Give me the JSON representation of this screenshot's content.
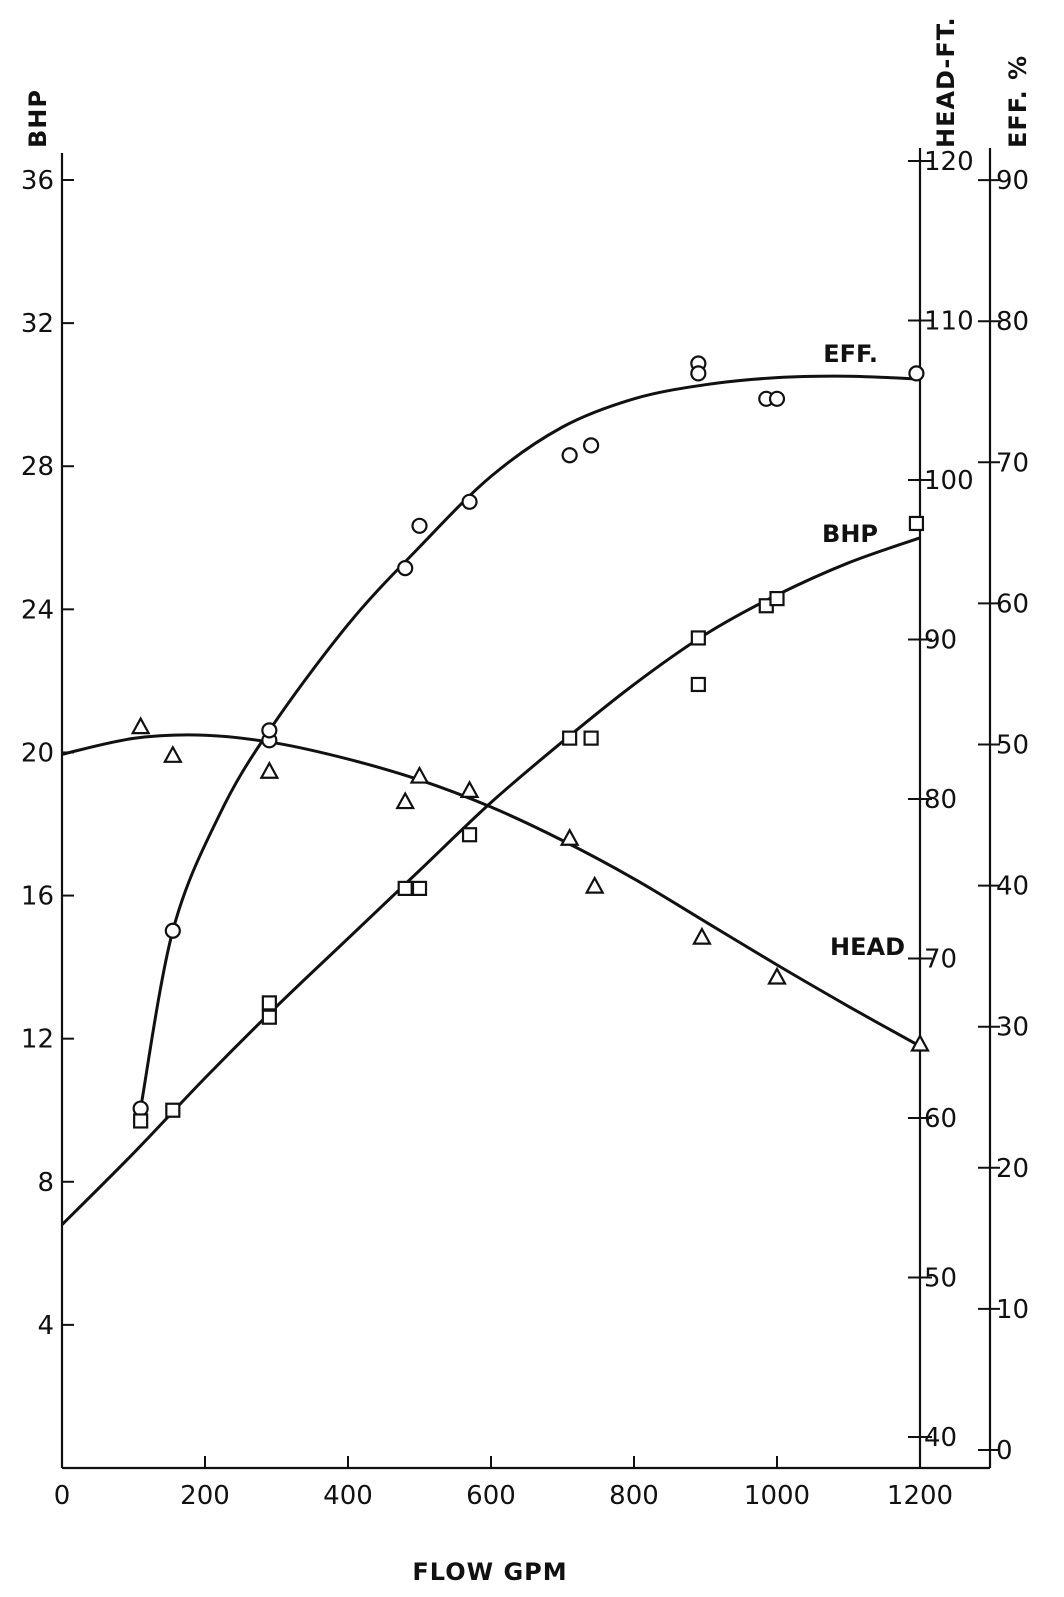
{
  "chart_data": {
    "type": "scatter",
    "title": "",
    "xlabel": "FLOW GPM",
    "x_ticks": [
      "0",
      "200",
      "400",
      "600",
      "800",
      "1000",
      "1200"
    ],
    "xlim": [
      0,
      1200
    ],
    "grid": false,
    "axes": {
      "bhp": {
        "label": "BHP",
        "ylim": [
          0,
          36
        ],
        "ticks": [
          "4",
          "8",
          "12",
          "16",
          "20",
          "24",
          "28",
          "32",
          "36"
        ],
        "side": "left"
      },
      "head": {
        "label": "HEAD-FT.",
        "ylim": [
          35,
          122
        ],
        "ticks": [
          "40",
          "50",
          "60",
          "70",
          "80",
          "90",
          "100",
          "110",
          "120"
        ],
        "side": "right-inner"
      },
      "eff": {
        "label": "EFF. %",
        "ylim": [
          0,
          90
        ],
        "ticks": [
          "0",
          "10",
          "20",
          "30",
          "40",
          "50",
          "60",
          "70",
          "80",
          "90"
        ],
        "side": "right-outer"
      }
    },
    "series": [
      {
        "name": "EFF.",
        "axis": "eff",
        "marker": "circle",
        "points": [
          {
            "x": 110,
            "y": 24.2
          },
          {
            "x": 155,
            "y": 36.8
          },
          {
            "x": 290,
            "y": 50.3
          },
          {
            "x": 290,
            "y": 51.0
          },
          {
            "x": 480,
            "y": 62.5
          },
          {
            "x": 500,
            "y": 65.5
          },
          {
            "x": 570,
            "y": 67.2
          },
          {
            "x": 710,
            "y": 70.5
          },
          {
            "x": 740,
            "y": 71.2
          },
          {
            "x": 890,
            "y": 77.0
          },
          {
            "x": 890,
            "y": 76.3
          },
          {
            "x": 985,
            "y": 74.5
          },
          {
            "x": 1000,
            "y": 74.5
          },
          {
            "x": 1195,
            "y": 76.3
          }
        ],
        "curve": [
          {
            "x": 110,
            "y": 24.2
          },
          {
            "x": 155,
            "y": 36.8
          },
          {
            "x": 220,
            "y": 45.0
          },
          {
            "x": 290,
            "y": 51.0
          },
          {
            "x": 400,
            "y": 58.5
          },
          {
            "x": 500,
            "y": 64.0
          },
          {
            "x": 600,
            "y": 69.0
          },
          {
            "x": 700,
            "y": 72.5
          },
          {
            "x": 800,
            "y": 74.5
          },
          {
            "x": 900,
            "y": 75.5
          },
          {
            "x": 1000,
            "y": 76.0
          },
          {
            "x": 1100,
            "y": 76.1
          },
          {
            "x": 1200,
            "y": 75.9
          }
        ]
      },
      {
        "name": "BHP",
        "axis": "bhp",
        "marker": "square",
        "points": [
          {
            "x": 110,
            "y": 9.7
          },
          {
            "x": 155,
            "y": 10.0
          },
          {
            "x": 290,
            "y": 13.0
          },
          {
            "x": 290,
            "y": 12.6
          },
          {
            "x": 480,
            "y": 16.2
          },
          {
            "x": 500,
            "y": 16.2
          },
          {
            "x": 570,
            "y": 17.7
          },
          {
            "x": 710,
            "y": 20.4
          },
          {
            "x": 740,
            "y": 20.4
          },
          {
            "x": 890,
            "y": 23.2
          },
          {
            "x": 890,
            "y": 21.9
          },
          {
            "x": 985,
            "y": 24.1
          },
          {
            "x": 1000,
            "y": 24.3
          },
          {
            "x": 1195,
            "y": 26.4
          }
        ],
        "curve": [
          {
            "x": 0,
            "y": 6.8
          },
          {
            "x": 100,
            "y": 8.8
          },
          {
            "x": 200,
            "y": 10.9
          },
          {
            "x": 300,
            "y": 12.9
          },
          {
            "x": 400,
            "y": 14.8
          },
          {
            "x": 500,
            "y": 16.7
          },
          {
            "x": 600,
            "y": 18.6
          },
          {
            "x": 700,
            "y": 20.3
          },
          {
            "x": 800,
            "y": 21.9
          },
          {
            "x": 900,
            "y": 23.3
          },
          {
            "x": 1000,
            "y": 24.4
          },
          {
            "x": 1100,
            "y": 25.3
          },
          {
            "x": 1200,
            "y": 26.0
          }
        ]
      },
      {
        "name": "HEAD",
        "axis": "head",
        "marker": "triangle",
        "points": [
          {
            "x": 110,
            "y": 84.5
          },
          {
            "x": 155,
            "y": 82.7
          },
          {
            "x": 290,
            "y": 81.7
          },
          {
            "x": 480,
            "y": 79.8
          },
          {
            "x": 500,
            "y": 81.4
          },
          {
            "x": 570,
            "y": 80.5
          },
          {
            "x": 710,
            "y": 77.5
          },
          {
            "x": 745,
            "y": 74.5
          },
          {
            "x": 895,
            "y": 71.3
          },
          {
            "x": 1000,
            "y": 68.8
          },
          {
            "x": 1200,
            "y": 64.6
          }
        ],
        "curve": [
          {
            "x": 0,
            "y": 82.8
          },
          {
            "x": 100,
            "y": 83.8
          },
          {
            "x": 200,
            "y": 84.0
          },
          {
            "x": 300,
            "y": 83.5
          },
          {
            "x": 400,
            "y": 82.5
          },
          {
            "x": 500,
            "y": 81.2
          },
          {
            "x": 600,
            "y": 79.5
          },
          {
            "x": 700,
            "y": 77.4
          },
          {
            "x": 800,
            "y": 75.0
          },
          {
            "x": 900,
            "y": 72.3
          },
          {
            "x": 1000,
            "y": 69.6
          },
          {
            "x": 1100,
            "y": 67.0
          },
          {
            "x": 1200,
            "y": 64.5
          }
        ]
      }
    ]
  }
}
